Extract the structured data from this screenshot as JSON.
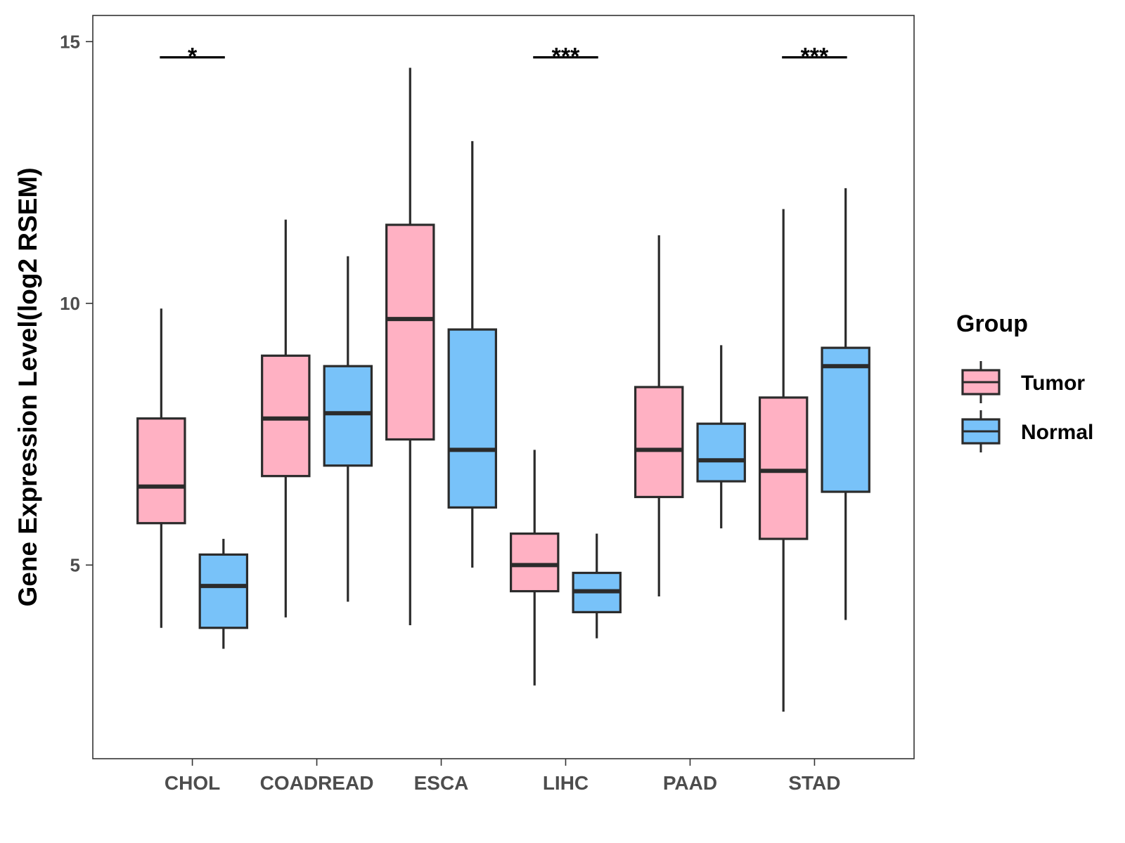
{
  "chart_data": {
    "type": "boxplot",
    "title": "",
    "xlabel": "",
    "ylabel": "Gene Expression Level(log2 RSEM)",
    "ylim": [
      1.3,
      15.5
    ],
    "yticks": [
      5,
      10,
      15
    ],
    "grid": false,
    "categories": [
      "CHOL",
      "COADREAD",
      "ESCA",
      "LIHC",
      "PAAD",
      "STAD"
    ],
    "legend": {
      "title": "Group",
      "position": "right",
      "entries": [
        {
          "name": "Tumor",
          "color": "#FFB1C3"
        },
        {
          "name": "Normal",
          "color": "#78C2F9"
        }
      ]
    },
    "series": [
      {
        "name": "Tumor",
        "color": "#FFB1C3",
        "boxes": [
          {
            "min": 3.8,
            "q1": 5.8,
            "median": 6.5,
            "q3": 7.8,
            "max": 9.9
          },
          {
            "min": 4.0,
            "q1": 6.7,
            "median": 7.8,
            "q3": 9.0,
            "max": 11.6
          },
          {
            "min": 3.85,
            "q1": 7.4,
            "median": 9.7,
            "q3": 11.5,
            "max": 14.5
          },
          {
            "min": 2.7,
            "q1": 4.5,
            "median": 5.0,
            "q3": 5.6,
            "max": 7.2
          },
          {
            "min": 4.4,
            "q1": 6.3,
            "median": 7.2,
            "q3": 8.4,
            "max": 11.3
          },
          {
            "min": 2.2,
            "q1": 5.5,
            "median": 6.8,
            "q3": 8.2,
            "max": 11.8
          }
        ]
      },
      {
        "name": "Normal",
        "color": "#78C2F9",
        "boxes": [
          {
            "min": 3.4,
            "q1": 3.8,
            "median": 4.6,
            "q3": 5.2,
            "max": 5.5
          },
          {
            "min": 4.3,
            "q1": 6.9,
            "median": 7.9,
            "q3": 8.8,
            "max": 10.9
          },
          {
            "min": 4.95,
            "q1": 6.1,
            "median": 7.2,
            "q3": 9.5,
            "max": 13.1
          },
          {
            "min": 3.6,
            "q1": 4.1,
            "median": 4.5,
            "q3": 4.85,
            "max": 5.6
          },
          {
            "min": 5.7,
            "q1": 6.6,
            "median": 7.0,
            "q3": 7.7,
            "max": 9.2
          },
          {
            "min": 3.95,
            "q1": 6.4,
            "median": 8.8,
            "q3": 9.15,
            "max": 12.2
          }
        ]
      }
    ],
    "annotations": [
      {
        "category": "CHOL",
        "label": "*"
      },
      {
        "category": "LIHC",
        "label": "***"
      },
      {
        "category": "STAD",
        "label": "***"
      }
    ]
  }
}
